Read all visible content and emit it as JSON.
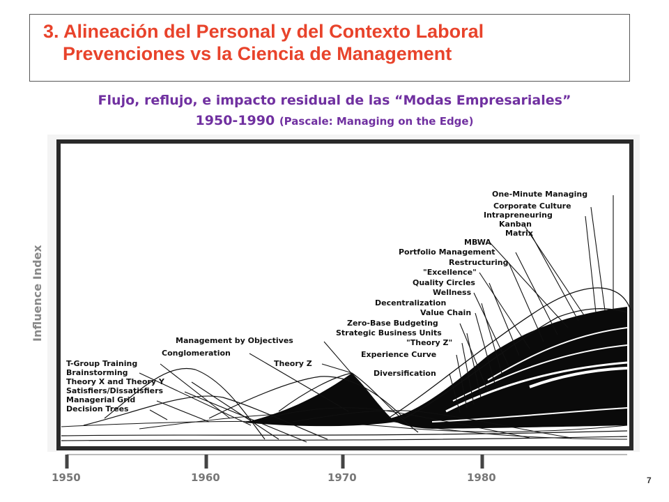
{
  "slide": {
    "title_line1": "3. Alineación del Personal y del Contexto Laboral",
    "title_line2": "Prevenciones vs la Ciencia de Management",
    "subtitle_line1": "Flujo, reflujo, e impacto residual de las “Modas Empresariales”",
    "subtitle_line2_main": "1950-1990",
    "subtitle_line2_paren": "(Pascale: Managing on the Edge)",
    "page_number": "7"
  },
  "diagram": {
    "y_axis_label": "Influence Index",
    "x_ticks": [
      "1950",
      "1960",
      "1970",
      "1980"
    ],
    "fads_left": [
      "T-Group Training",
      "Brainstorming",
      "Theory X and Theory Y",
      "Satisfiers/Dissatisfiers",
      "Managerial Grid",
      "Decision Trees"
    ],
    "fads_middle": [
      "Management by Objectives",
      "Conglomeration",
      "Theory Z"
    ],
    "fads_right": [
      "One-Minute Managing",
      "Corporate Culture",
      "Intrapreneuring",
      "Kanban",
      "Matrix",
      "MBWA",
      "Portfolio Management",
      "Restructuring",
      "\"Excellence\"",
      "Quality Circles",
      "Wellness",
      "Decentralization",
      "Value Chain",
      "Zero-Base Budgeting",
      "Strategic Business Units",
      "\"Theory Z\"",
      "Experience Curve",
      "Diversification"
    ]
  }
}
